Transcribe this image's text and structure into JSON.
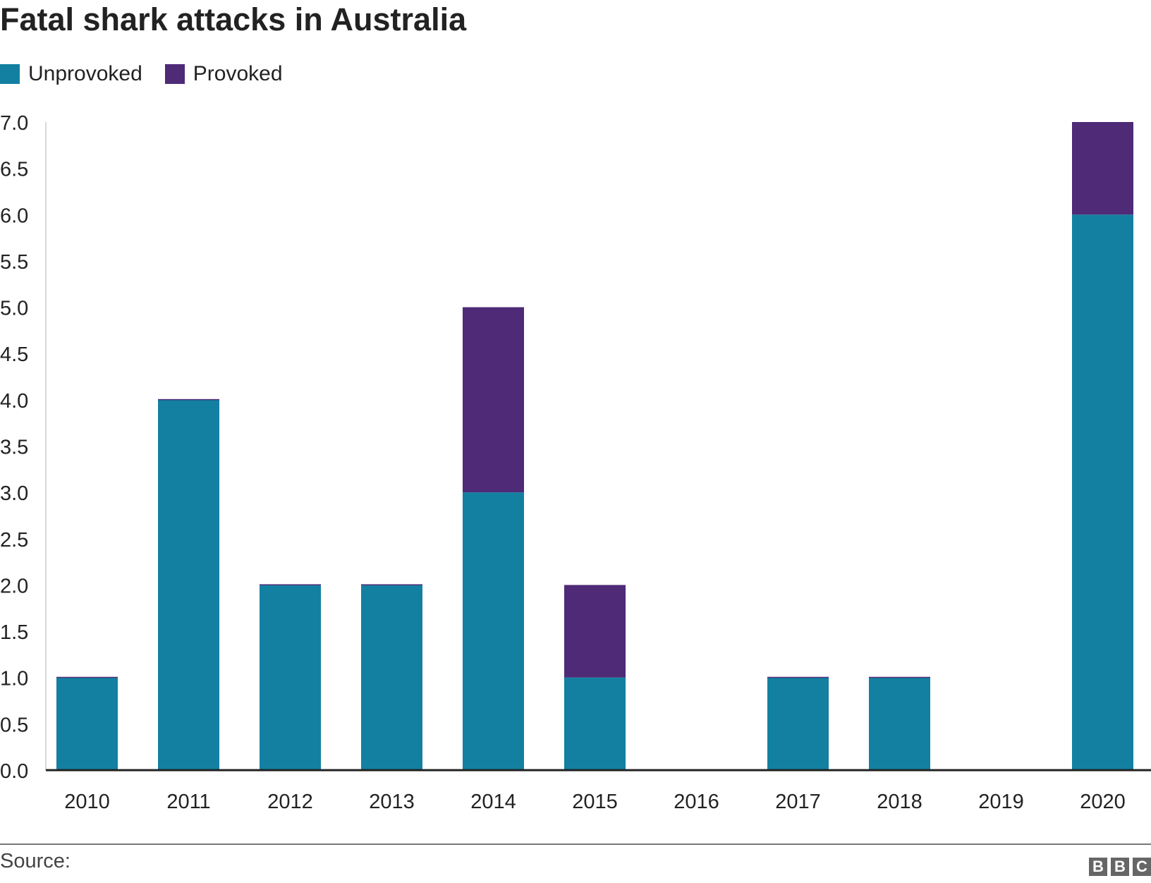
{
  "chart_data": {
    "type": "bar",
    "stacked": true,
    "title": "Fatal shark attacks in Australia",
    "categories": [
      "2010",
      "2011",
      "2012",
      "2013",
      "2014",
      "2015",
      "2016",
      "2017",
      "2018",
      "2019",
      "2020"
    ],
    "series": [
      {
        "name": "Unprovoked",
        "color": "#1380A1",
        "values": [
          1,
          4,
          2,
          2,
          3,
          1,
          0,
          1,
          1,
          0,
          6
        ]
      },
      {
        "name": "Provoked",
        "color": "#4E2A77",
        "values": [
          0,
          0,
          0,
          0,
          2,
          1,
          0,
          0,
          0,
          0,
          1
        ]
      }
    ],
    "yticks": [
      "0.0",
      "0.5",
      "1.0",
      "1.5",
      "2.0",
      "2.5",
      "3.0",
      "3.5",
      "4.0",
      "4.5",
      "5.0",
      "5.5",
      "6.0",
      "6.5",
      "7.0"
    ],
    "ylim": [
      0,
      7
    ],
    "xlabel": "",
    "ylabel": "",
    "legend_position": "top-left"
  },
  "footer": {
    "source": "Source:",
    "logo": "BBC"
  }
}
